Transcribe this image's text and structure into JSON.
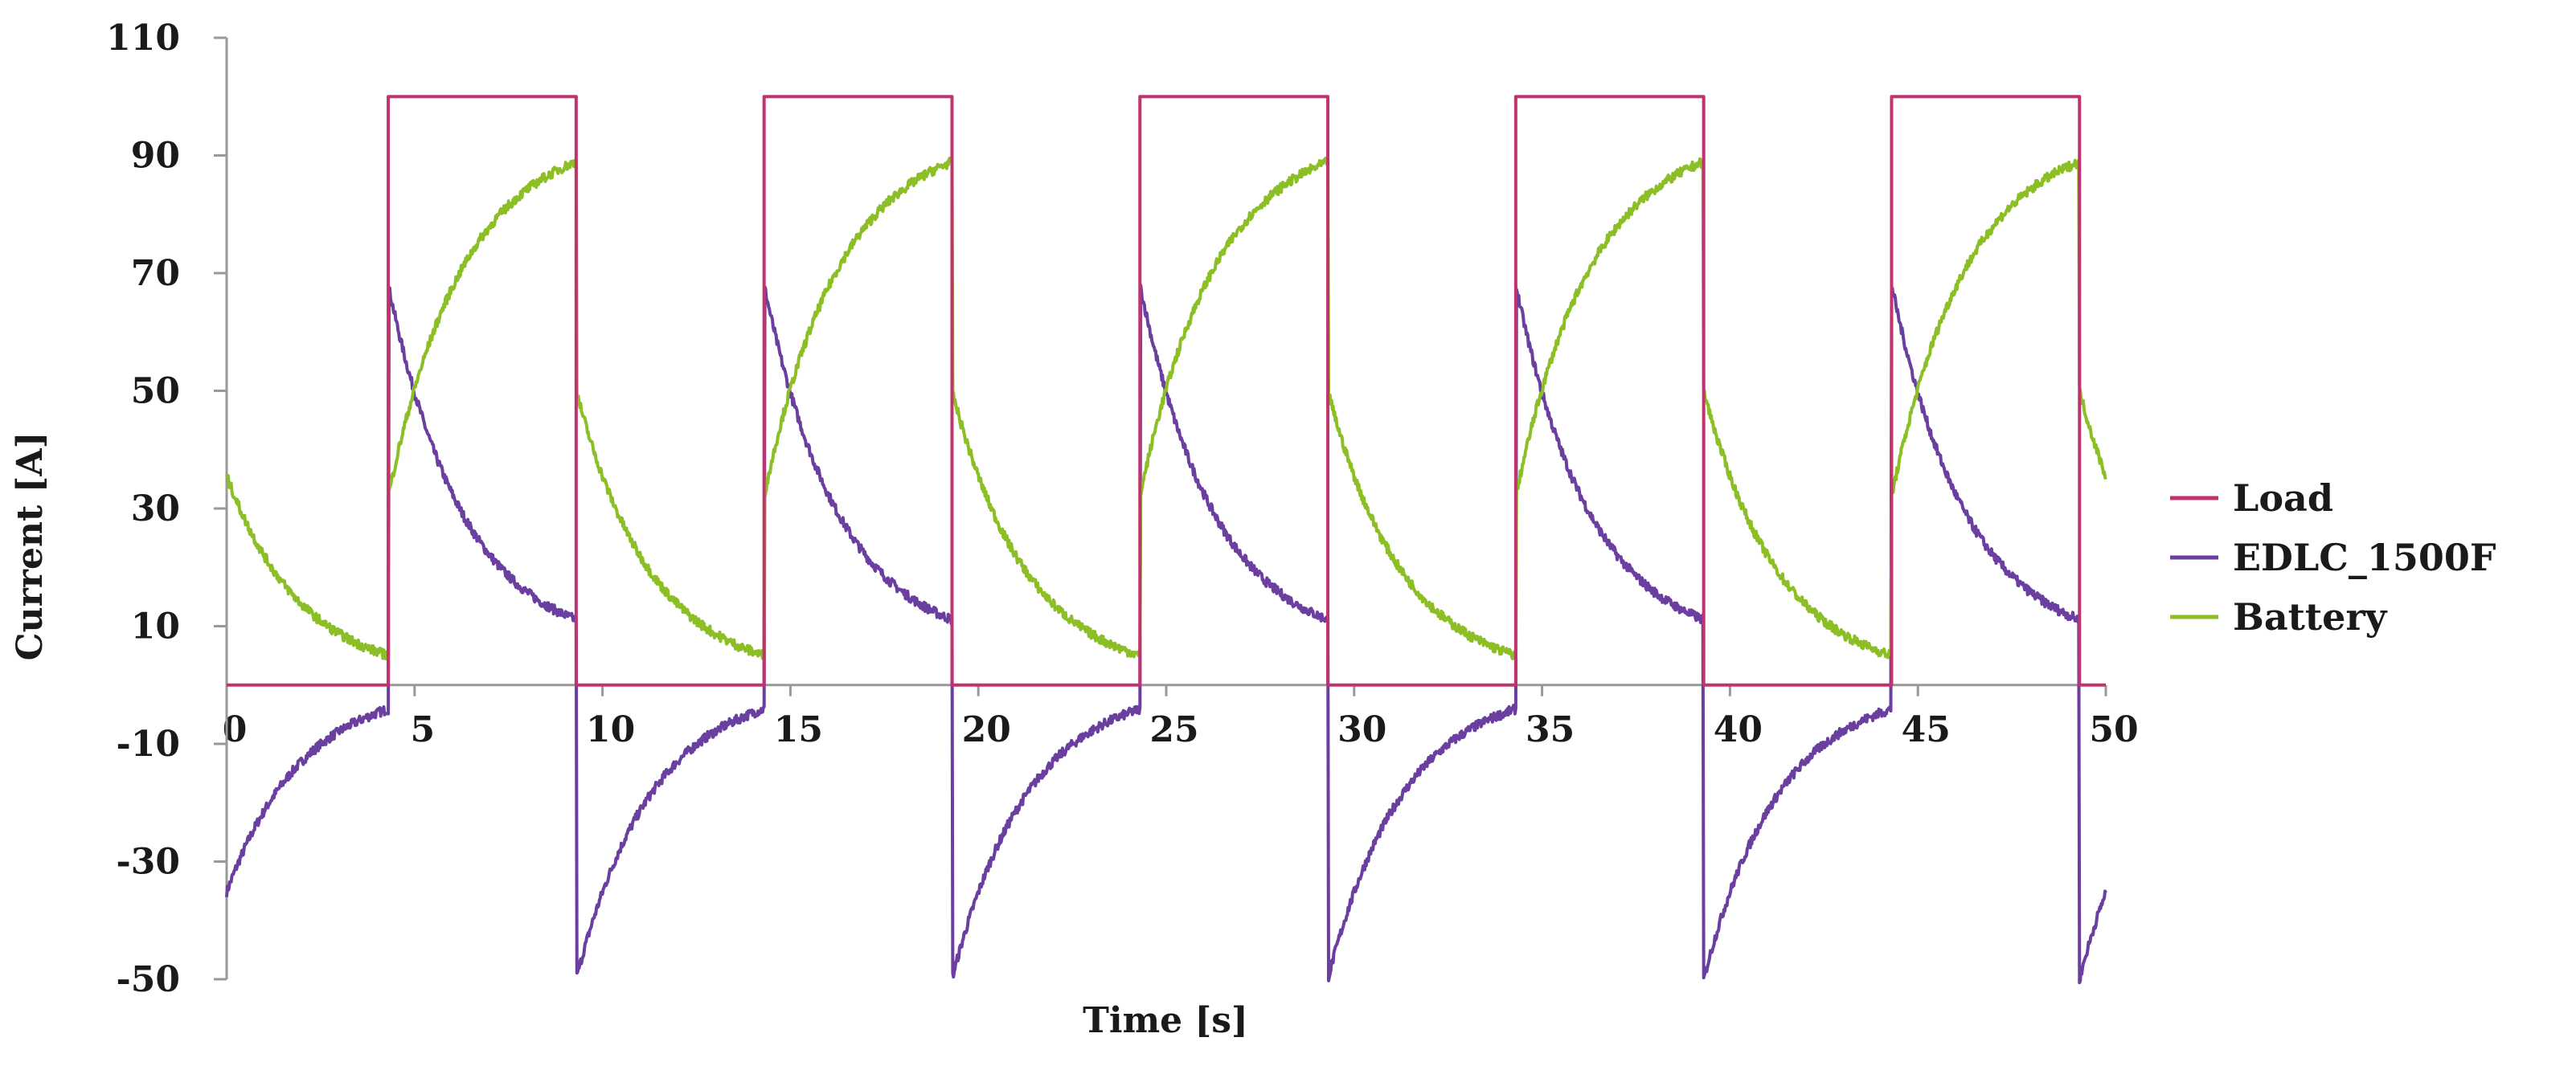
{
  "chart_data": {
    "type": "line",
    "title": "",
    "xlabel": "Time [s]",
    "ylabel": "Current [A]",
    "xlim": [
      0,
      50
    ],
    "ylim": [
      -50,
      110
    ],
    "x_ticks": [
      0,
      5,
      10,
      15,
      20,
      25,
      30,
      35,
      40,
      45,
      50
    ],
    "y_ticks": [
      -50,
      -30,
      -10,
      10,
      30,
      50,
      70,
      90,
      110
    ],
    "grid": false,
    "legend_position": "right",
    "pulse": {
      "period": 10,
      "first_on": 4.3,
      "on_duration": 5.0,
      "time_constant": 2.0
    },
    "series": [
      {
        "name": "Load",
        "color": "#c0336e",
        "levels": {
          "off": 0,
          "on": 100
        }
      },
      {
        "name": "EDLC_1500F",
        "color": "#6a3fa0",
        "levels": {
          "off_start": -50,
          "off_end": 0,
          "on_start": 68,
          "on_end": 6
        }
      },
      {
        "name": "Battery",
        "color": "#8cbf26",
        "levels": {
          "off_start": 50,
          "off_end": 1,
          "on_start": 32,
          "on_end": 94
        }
      }
    ]
  }
}
